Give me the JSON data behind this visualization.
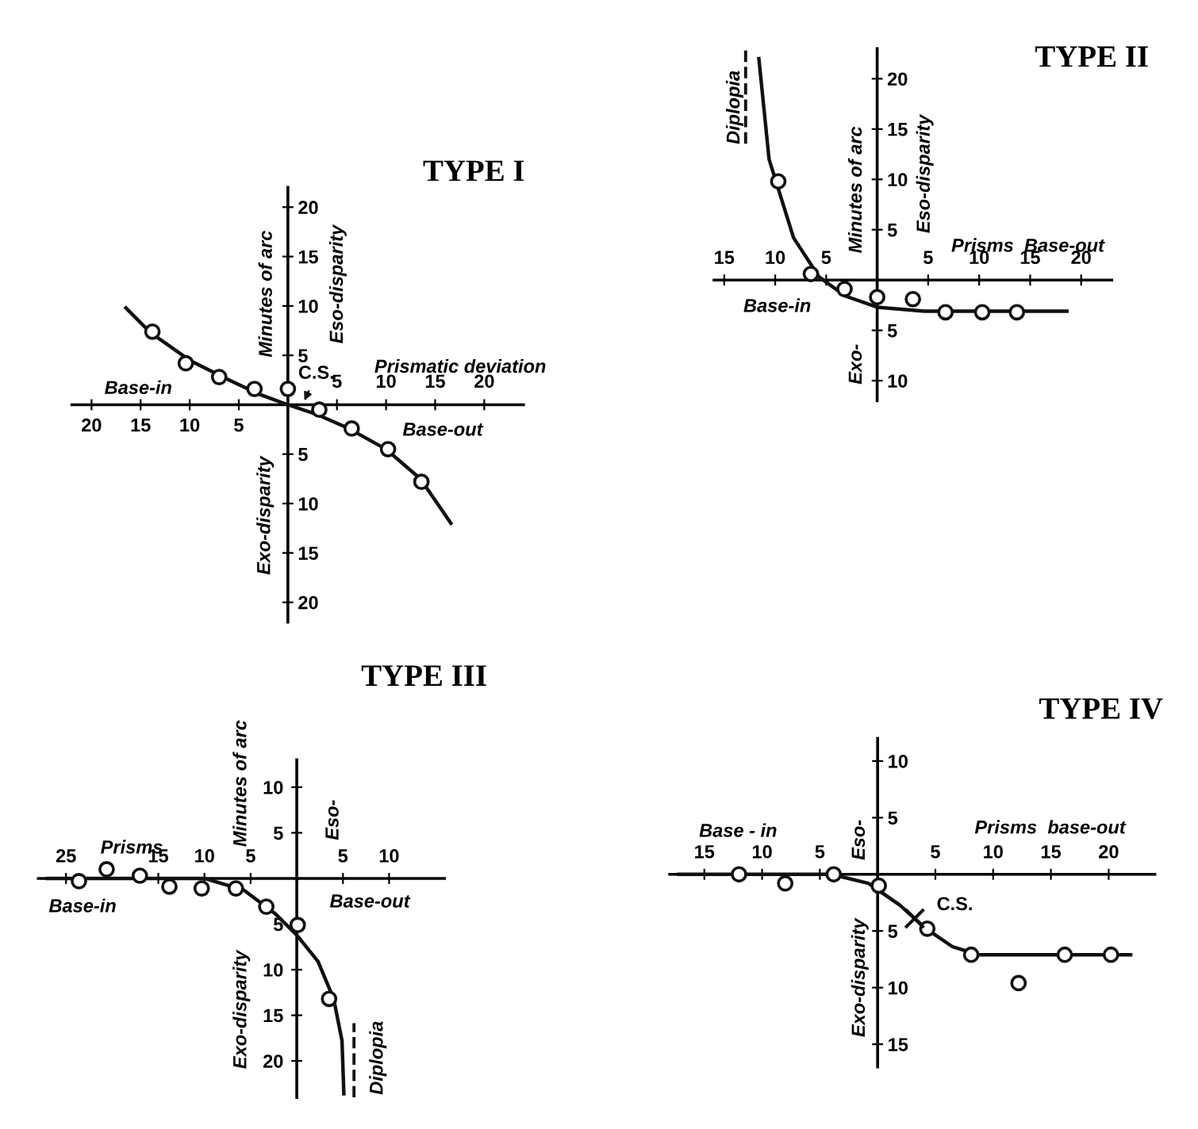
{
  "chart_data": [
    {
      "type": "scatter",
      "title": "TYPE I",
      "xlabel": "Prismatic deviation",
      "ylabel": "Minutes of arc",
      "xlim": [
        -22,
        24
      ],
      "ylim": [
        -22,
        22
      ],
      "x2lim": [
        -22,
        24
      ],
      "xticks": [
        {
          "value": -20,
          "label": "20"
        },
        {
          "value": -15,
          "label": "15"
        },
        {
          "value": -10,
          "label": "10"
        },
        {
          "value": -5,
          "label": "5"
        }
      ],
      "x2ticks": [
        5,
        10,
        15,
        20
      ],
      "yticks": [
        {
          "value": -20,
          "label": "20"
        },
        {
          "value": -15,
          "label": "15"
        },
        {
          "value": -10,
          "label": "10"
        },
        {
          "value": -5,
          "label": "5"
        },
        5,
        10,
        15,
        20
      ],
      "series": [
        {
          "type": "line",
          "color": "#111111",
          "marker": "none",
          "x": [
            -16.5,
            -14,
            -10,
            -6,
            -3,
            0,
            3,
            6,
            10,
            13.5,
            16.6
          ],
          "values": [
            9.8,
            7.3,
            4.5,
            2.5,
            1.1,
            0,
            -1,
            -2.3,
            -4.5,
            -7.5,
            -12
          ]
        },
        {
          "type": "scatter",
          "color": "#111111",
          "marker": "circle",
          "x": [
            -13.8,
            -10.4,
            -7.0,
            -3.4,
            0,
            3.2,
            6.5,
            10.2,
            13.6
          ],
          "values": [
            7.4,
            4.2,
            2.8,
            1.6,
            1.6,
            -0.5,
            -2.4,
            -4.5,
            -7.8
          ]
        }
      ],
      "annotations": [
        "Eso-disparity",
        "Base-in",
        "Base-out",
        "Exo-disparity",
        {
          "text": "C.S.",
          "x": 1.5,
          "y": 0
        }
      ]
    },
    {
      "type": "scatter",
      "title": "TYPE II",
      "xlabel": "Prisms  Base-out",
      "ylabel": "Minutes of arc",
      "xlim": [
        -16,
        23
      ],
      "ylim": [
        -12,
        23
      ],
      "xticks": [
        {
          "value": -15,
          "label": "15"
        },
        {
          "value": -10,
          "label": "10"
        },
        {
          "value": -5,
          "label": "5"
        },
        5,
        10,
        15,
        20
      ],
      "yticks": [
        {
          "value": -10,
          "label": "10"
        },
        {
          "value": -5,
          "label": "5"
        },
        5,
        10,
        15,
        20
      ],
      "series": [
        {
          "type": "line",
          "color": "#111111",
          "marker": "none",
          "x": [
            -11.6,
            -10.6,
            -8.2,
            -5.7,
            -3.1,
            0,
            4.6,
            18.6
          ],
          "values": [
            22,
            12,
            4.2,
            0.3,
            -1.6,
            -2.7,
            -3.1,
            -3.1
          ]
        },
        {
          "type": "scatter",
          "color": "#111111",
          "marker": "circle",
          "x": [
            -9.7,
            -6.5,
            -3.2,
            0,
            3.5,
            6.7,
            10.3,
            13.7
          ],
          "values": [
            9.8,
            0.6,
            -0.9,
            -1.7,
            -1.9,
            -3.2,
            -3.2,
            -3.2
          ]
        }
      ],
      "ref_lines": [
        {
          "axis": "x",
          "value": -12.9,
          "label": "Diplopia",
          "line_style": "dashed",
          "color": "#111111"
        }
      ],
      "annotations": [
        "Eso-disparity",
        "Base-in",
        "Exo-"
      ]
    },
    {
      "type": "scatter",
      "title": "TYPE III",
      "xlabel": "Prisms",
      "ylabel": "Minutes of arc",
      "xlim": [
        -28,
        16
      ],
      "ylim": [
        -24,
        13
      ],
      "xticks": [
        {
          "value": -25,
          "label": "25"
        },
        {
          "value": -15,
          "label": "15"
        },
        {
          "value": -10,
          "label": "10"
        },
        {
          "value": -5,
          "label": "5"
        },
        5,
        10
      ],
      "yticks": [
        {
          "value": -20,
          "label": "20"
        },
        {
          "value": -15,
          "label": "15"
        },
        {
          "value": -10,
          "label": "10"
        },
        {
          "value": -5,
          "label": "5"
        },
        5,
        10
      ],
      "series": [
        {
          "type": "line",
          "color": "#111111",
          "marker": "none",
          "x": [
            -27,
            -10,
            -5.7,
            -2.3,
            0,
            2.3,
            4,
            4.9,
            5.1
          ],
          "values": [
            0,
            0,
            -1.3,
            -3.9,
            -6.2,
            -9.1,
            -13.2,
            -17.8,
            -23.6
          ]
        },
        {
          "type": "scatter",
          "color": "#111111",
          "marker": "circle",
          "x": [
            -23.6,
            -20.6,
            -17,
            -13.8,
            -10.3,
            -6.6,
            -3.3,
            0.1,
            3.5
          ],
          "values": [
            -0.3,
            1.0,
            0.3,
            -0.9,
            -1.1,
            -1.1,
            -3.1,
            -5.1,
            -13.2
          ]
        }
      ],
      "ref_lines": [
        {
          "axis": "x",
          "value": 6.2,
          "label": "Diplopia",
          "line_style": "dashed",
          "color": "#111111"
        }
      ],
      "annotations": [
        "Eso-",
        "Base-in",
        "Base-out",
        "Exo-disparity"
      ]
    },
    {
      "type": "scatter",
      "title": "TYPE IV",
      "xlabel": "Prisms  base-out",
      "xlim": [
        -18,
        24
      ],
      "ylim": [
        -17,
        12
      ],
      "xticks": [
        {
          "value": -15,
          "label": "15"
        },
        {
          "value": -10,
          "label": "10"
        },
        {
          "value": -5,
          "label": "5"
        },
        5,
        10,
        15,
        20
      ],
      "yticks": [
        {
          "value": -15,
          "label": "15"
        },
        {
          "value": -10,
          "label": "10"
        },
        {
          "value": -5,
          "label": "5"
        },
        5,
        10
      ],
      "series": [
        {
          "type": "line",
          "color": "#111111",
          "marker": "none",
          "x": [
            -17.2,
            -4,
            -0.8,
            1.9,
            4.2,
            6.5,
            8.7,
            21.9
          ],
          "values": [
            0,
            0,
            -0.8,
            -2.7,
            -4.8,
            -6.4,
            -7.1,
            -7.1
          ]
        },
        {
          "type": "scatter",
          "color": "#111111",
          "marker": "circle",
          "x": [
            -12,
            -8,
            -3.8,
            0.1,
            4.3,
            8.1,
            12.2,
            16.2,
            20.2
          ],
          "values": [
            0,
            -0.8,
            0,
            -1.0,
            -4.8,
            -7.1,
            -9.6,
            -7.1,
            -7.1
          ]
        },
        {
          "type": "scatter",
          "color": "#111111",
          "marker": "cross",
          "x": [
            3.2
          ],
          "values": [
            -3.9
          ]
        }
      ],
      "annotations": [
        "Base - in",
        "Eso-",
        "Exo-disparity",
        {
          "text": "C.S.",
          "x": 3.2,
          "y": -3.9
        }
      ]
    }
  ]
}
